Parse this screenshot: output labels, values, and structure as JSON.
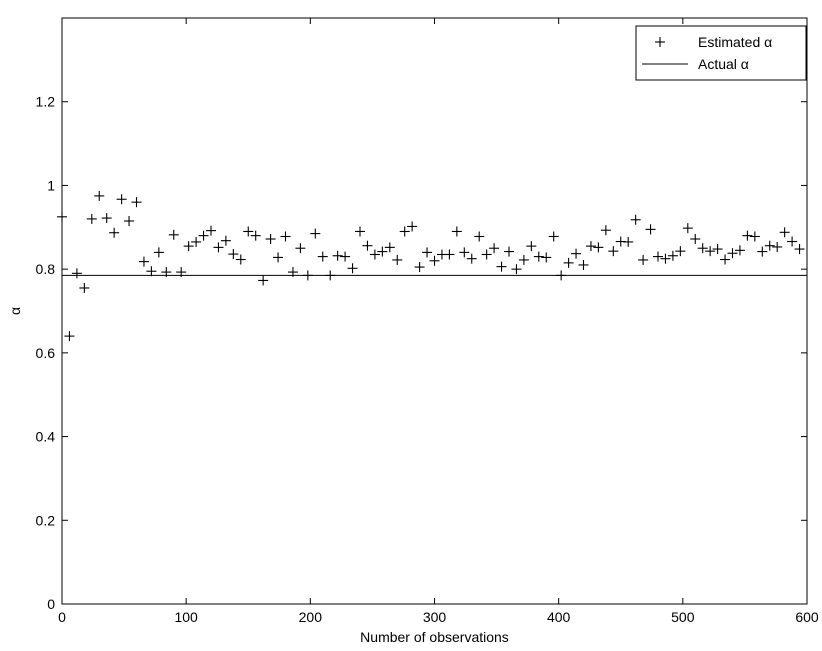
{
  "chart_data": {
    "type": "scatter",
    "xlabel": "Number of observations",
    "ylabel": "α",
    "xlim": [
      0,
      600
    ],
    "ylim": [
      0,
      1.4
    ],
    "xticks": [
      0,
      100,
      200,
      300,
      400,
      500,
      600
    ],
    "yticks": [
      0,
      0.2,
      0.4,
      0.6,
      0.8,
      1,
      1.2
    ],
    "xtick_labels": [
      "0",
      "100",
      "200",
      "300",
      "400",
      "500",
      "600"
    ],
    "ytick_labels": [
      "0",
      "0.2",
      "0.4",
      "0.6",
      "0.8",
      "1",
      "1.2"
    ],
    "grid": false,
    "legend_position": "top-right",
    "series": [
      {
        "name": "Estimated α",
        "marker": "plus",
        "color": "#000000",
        "points": [
          [
            0,
            0.925
          ],
          [
            6,
            0.64
          ],
          [
            12,
            0.79
          ],
          [
            18,
            0.755
          ],
          [
            24,
            0.92
          ],
          [
            30,
            0.975
          ],
          [
            36,
            0.922
          ],
          [
            42,
            0.887
          ],
          [
            48,
            0.967
          ],
          [
            54,
            0.915
          ],
          [
            60,
            0.96
          ],
          [
            66,
            0.818
          ],
          [
            72,
            0.795
          ],
          [
            78,
            0.84
          ],
          [
            84,
            0.793
          ],
          [
            90,
            0.882
          ],
          [
            96,
            0.793
          ],
          [
            102,
            0.855
          ],
          [
            108,
            0.865
          ],
          [
            114,
            0.88
          ],
          [
            120,
            0.892
          ],
          [
            126,
            0.852
          ],
          [
            132,
            0.868
          ],
          [
            138,
            0.836
          ],
          [
            144,
            0.823
          ],
          [
            150,
            0.89
          ],
          [
            156,
            0.88
          ],
          [
            162,
            0.773
          ],
          [
            168,
            0.872
          ],
          [
            174,
            0.828
          ],
          [
            180,
            0.878
          ],
          [
            186,
            0.793
          ],
          [
            192,
            0.85
          ],
          [
            198,
            0.785
          ],
          [
            204,
            0.885
          ],
          [
            210,
            0.83
          ],
          [
            216,
            0.785
          ],
          [
            222,
            0.832
          ],
          [
            228,
            0.83
          ],
          [
            234,
            0.802
          ],
          [
            240,
            0.89
          ],
          [
            246,
            0.856
          ],
          [
            252,
            0.835
          ],
          [
            258,
            0.842
          ],
          [
            264,
            0.852
          ],
          [
            270,
            0.822
          ],
          [
            276,
            0.89
          ],
          [
            282,
            0.902
          ],
          [
            288,
            0.805
          ],
          [
            294,
            0.84
          ],
          [
            300,
            0.82
          ],
          [
            306,
            0.835
          ],
          [
            312,
            0.835
          ],
          [
            318,
            0.89
          ],
          [
            324,
            0.84
          ],
          [
            330,
            0.825
          ],
          [
            336,
            0.878
          ],
          [
            342,
            0.835
          ],
          [
            348,
            0.85
          ],
          [
            354,
            0.806
          ],
          [
            360,
            0.842
          ],
          [
            366,
            0.8
          ],
          [
            372,
            0.822
          ],
          [
            378,
            0.855
          ],
          [
            384,
            0.83
          ],
          [
            390,
            0.828
          ],
          [
            396,
            0.878
          ],
          [
            402,
            0.785
          ],
          [
            408,
            0.815
          ],
          [
            414,
            0.837
          ],
          [
            420,
            0.81
          ],
          [
            426,
            0.855
          ],
          [
            432,
            0.852
          ],
          [
            438,
            0.893
          ],
          [
            444,
            0.843
          ],
          [
            450,
            0.866
          ],
          [
            456,
            0.865
          ],
          [
            462,
            0.918
          ],
          [
            468,
            0.822
          ],
          [
            474,
            0.895
          ],
          [
            480,
            0.83
          ],
          [
            486,
            0.825
          ],
          [
            492,
            0.832
          ],
          [
            498,
            0.843
          ],
          [
            504,
            0.898
          ],
          [
            510,
            0.872
          ],
          [
            516,
            0.85
          ],
          [
            522,
            0.843
          ],
          [
            528,
            0.848
          ],
          [
            534,
            0.823
          ],
          [
            540,
            0.838
          ],
          [
            546,
            0.845
          ],
          [
            552,
            0.88
          ],
          [
            558,
            0.878
          ],
          [
            564,
            0.842
          ],
          [
            570,
            0.856
          ],
          [
            576,
            0.853
          ],
          [
            582,
            0.888
          ],
          [
            588,
            0.866
          ],
          [
            594,
            0.848
          ]
        ]
      },
      {
        "name": "Actual α",
        "type": "line",
        "color": "#000000",
        "y_constant": 0.785
      }
    ]
  }
}
